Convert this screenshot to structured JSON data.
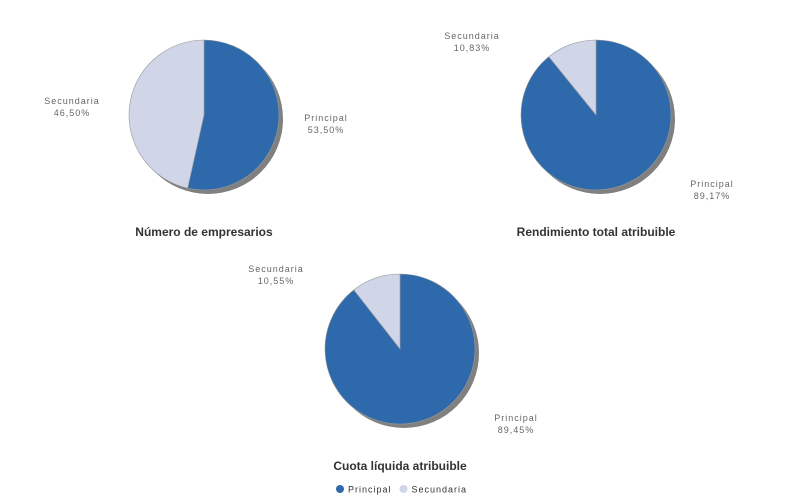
{
  "chart_data": [
    {
      "type": "pie",
      "title": "Número de empresarios",
      "slices": [
        {
          "name": "Principal",
          "value": 53.5,
          "label": "53,50%"
        },
        {
          "name": "Secundaria",
          "value": 46.5,
          "label": "46,50%"
        }
      ]
    },
    {
      "type": "pie",
      "title": "Rendimiento total atribuible",
      "slices": [
        {
          "name": "Principal",
          "value": 89.17,
          "label": "89,17%"
        },
        {
          "name": "Secundaria",
          "value": 10.83,
          "label": "10,83%"
        }
      ]
    },
    {
      "type": "pie",
      "title": "Cuota líquida atribuible",
      "slices": [
        {
          "name": "Principal",
          "value": 89.45,
          "label": "89,45%"
        },
        {
          "name": "Secundaria",
          "value": 10.55,
          "label": "10,55%"
        }
      ]
    }
  ],
  "legend": {
    "placement": "bottom",
    "items": [
      {
        "name": "Principal",
        "color": "#2e69ab"
      },
      {
        "name": "Secundaria",
        "color": "#d0d5e8"
      }
    ]
  },
  "colors": {
    "Principal": "#2e69ab",
    "Secundaria": "#d0d5e8",
    "shadow": "#808080"
  }
}
